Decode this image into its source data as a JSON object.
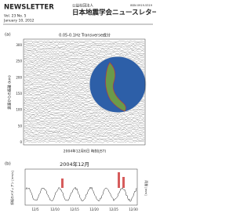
{
  "header": {
    "series": "NEWSLETTER",
    "volume": "Vol. 23 No. 5",
    "date": "January 10, 2012",
    "org": "公益社団法人",
    "title": "日本地震学会ニュースレター",
    "issn": "ISSN 0919-5319"
  },
  "figure_a": {
    "label": "(a)",
    "title": "0.05-0.1Hz Transverse成分",
    "y_label": "震源からの距離 (km)",
    "y_ticks": [
      "0",
      "50",
      "100",
      "150",
      "200",
      "250",
      "300"
    ],
    "x_label": "2004年12月6日 時刻(JST)"
  },
  "figure_b": {
    "label": "(b)",
    "title": "2004年12月",
    "y_label": "振幅のメディアン [nm/s]",
    "y2_label": "雨量 [mm]",
    "x_ticks": [
      "12/5",
      "12/10",
      "12/15",
      "12/20",
      "12/25",
      "12/30"
    ]
  }
}
